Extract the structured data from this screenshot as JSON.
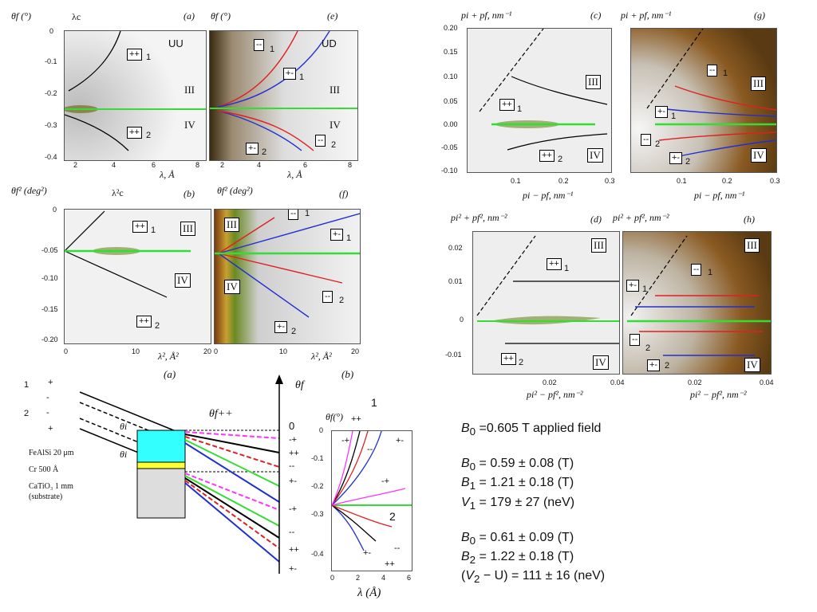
{
  "panels": {
    "a": {
      "ylabel": "θf (°)",
      "xlabel": "λ, Å",
      "letter": "(a)",
      "marker": "λc",
      "tag": "UU",
      "regions": [
        "III",
        "IV"
      ],
      "boxes": [
        "++",
        "++"
      ],
      "box_idx": [
        "1",
        "2"
      ],
      "yticks": [
        "0",
        "-0.1",
        "-0.2",
        "-0.3",
        "-0.4"
      ],
      "xticks": [
        "2",
        "4",
        "6",
        "8"
      ]
    },
    "e": {
      "ylabel": "θf (°)",
      "xlabel": "λ, Å",
      "letter": "(e)",
      "tag": "UD",
      "regions": [
        "III",
        "IV"
      ],
      "boxes": [
        "--",
        "+-",
        "--",
        "+-"
      ],
      "box_idx": [
        "1",
        "1",
        "2",
        "2"
      ],
      "xticks": [
        "2",
        "4",
        "6",
        "8"
      ]
    },
    "b": {
      "ylabel": "θf² (deg²)",
      "xlabel": "λ², Å²",
      "letter": "(b)",
      "marker": "λ²c",
      "regions": [
        "III",
        "IV"
      ],
      "boxes": [
        "++",
        "++"
      ],
      "box_idx": [
        "1",
        "2"
      ],
      "yticks": [
        "0",
        "-0.05",
        "-0.10",
        "-0.15",
        "-0.20"
      ],
      "xticks": [
        "0",
        "10",
        "20"
      ]
    },
    "f": {
      "ylabel": "θf² (deg²)",
      "xlabel": "λ², Å²",
      "letter": "(f)",
      "regions": [
        "III",
        "IV"
      ],
      "boxes": [
        "--",
        "+-",
        "--",
        "+-"
      ],
      "box_idx": [
        "1",
        "1",
        "2",
        "2"
      ],
      "xticks": [
        "0",
        "10",
        "20"
      ]
    },
    "c": {
      "ylabel": "pi + pf, nm⁻¹",
      "xlabel": "pi − pf, nm⁻¹",
      "letter": "(c)",
      "regions": [
        "III",
        "IV"
      ],
      "boxes": [
        "++",
        "++"
      ],
      "box_idx": [
        "1",
        "2"
      ],
      "yticks": [
        "0.20",
        "0.15",
        "0.10",
        "0.05",
        "0.00",
        "-0.05",
        "-0.10"
      ],
      "xticks": [
        "0.1",
        "0.2",
        "0.3"
      ]
    },
    "g": {
      "ylabel": "pi + pf, nm⁻¹",
      "xlabel": "pi − pf, nm⁻¹",
      "letter": "(g)",
      "regions": [
        "III",
        "IV"
      ],
      "boxes": [
        "--",
        "+-",
        "--",
        "+-"
      ],
      "box_idx": [
        "1",
        "1",
        "2",
        "2"
      ],
      "xticks": [
        "0.1",
        "0.2",
        "0.3"
      ]
    },
    "d": {
      "ylabel": "pi² + pf², nm⁻²",
      "xlabel": "pi² − pf², nm⁻²",
      "letter": "(d)",
      "regions": [
        "III",
        "IV"
      ],
      "boxes": [
        "++",
        "++"
      ],
      "box_idx": [
        "1",
        "2"
      ],
      "yticks": [
        "0.02",
        "0.01",
        "0",
        "-0.01"
      ],
      "xticks": [
        "0.02",
        "0.04"
      ]
    },
    "h": {
      "ylabel": "pi² + pf², nm⁻²",
      "xlabel": "pi² − pf², nm⁻²",
      "letter": "(h)",
      "regions": [
        "III",
        "IV"
      ],
      "boxes": [
        "--",
        "+-",
        "--",
        "+-"
      ],
      "box_idx": [
        "1",
        "1",
        "2",
        "2"
      ],
      "xticks": [
        "0.02",
        "0.04"
      ]
    }
  },
  "subcaptions": {
    "left": "(a)",
    "right": "(b)"
  },
  "schematic": {
    "beam1": "1",
    "beam2": "2",
    "plus": "+",
    "minus": "-",
    "theta_i": "θi",
    "theta_f": "θf++",
    "axis": "θf",
    "zero": "0",
    "layers": [
      "FeAlSi 20 μm",
      "Cr   500 Å",
      "CaTiO₃  1 mm",
      "(substrate)"
    ],
    "states": [
      "-+",
      "++",
      "--",
      "+-",
      "-+",
      "--",
      "++",
      "+-"
    ]
  },
  "inset": {
    "ylabel": "θf(°)",
    "xlabel": "λ (Å)",
    "label1": "1",
    "label2": "2",
    "yticks": [
      "0",
      "-0.1",
      "-0.2",
      "-0.3",
      "-0.4"
    ],
    "xticks": [
      "0",
      "2",
      "4",
      "6"
    ],
    "tags": [
      "++",
      "-+",
      "--",
      "+-",
      "-+",
      "--",
      "+-",
      "++"
    ]
  },
  "results": {
    "line1_sym": "B",
    "line1_sub": "0",
    "line1_rest": " =0.605 T applied field",
    "fit1": [
      {
        "sym": "B",
        "sub": "0",
        "rest": " = 0.59 ± 0.08 (T)"
      },
      {
        "sym": "B",
        "sub": "1",
        "rest": " = 1.21 ± 0.18 (T)"
      },
      {
        "sym": "V",
        "sub": "1",
        "rest": " = 179 ± 27 (neV)"
      }
    ],
    "fit2": [
      {
        "sym": "B",
        "sub": "0",
        "rest": " = 0.61 ± 0.09 (T)"
      },
      {
        "sym": "B",
        "sub": "2",
        "rest": " = 1.22 ± 0.18 (T)"
      },
      {
        "pre": "(",
        "sym": "V",
        "sub": "2",
        "rest": " − U) = 111 ± 16 (neV)"
      }
    ]
  },
  "colors": {
    "green": "#33dd33",
    "red": "#e02020",
    "blue": "#2030d0",
    "magenta": "#ff33ff",
    "cyan": "#33ffff",
    "yellow": "#ffff33",
    "brown": "#8a5a22"
  }
}
